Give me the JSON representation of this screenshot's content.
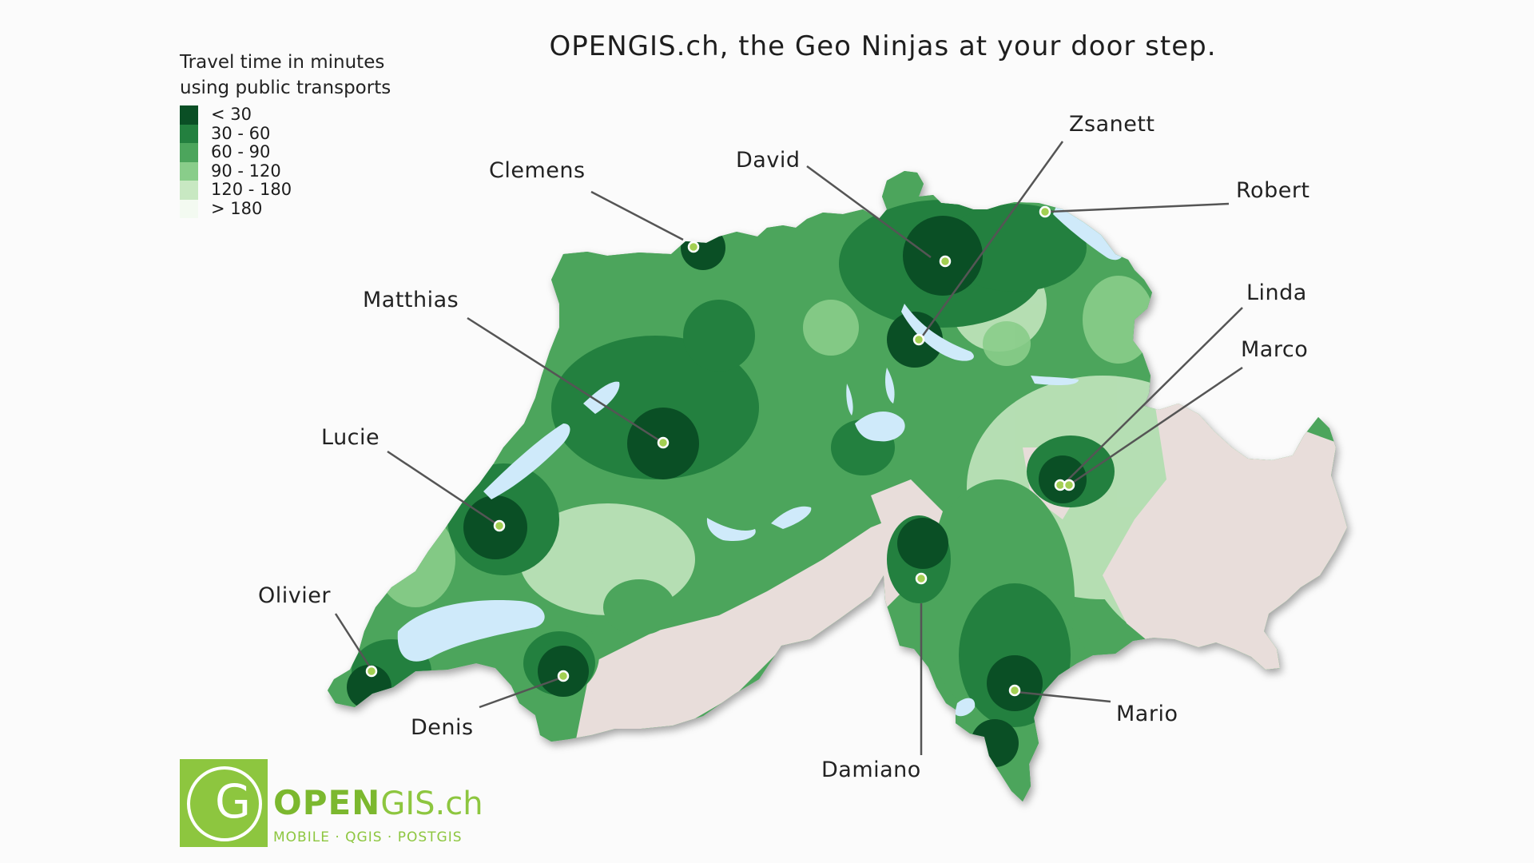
{
  "title": "OPENGIS.ch, the Geo Ninjas at your door step.",
  "legend": {
    "title_line1": "Travel time in minutes",
    "title_line2": "using public transports",
    "items": [
      {
        "label": "< 30",
        "color": "#0a4f25"
      },
      {
        "label": "30 - 60",
        "color": "#23803f"
      },
      {
        "label": "60 - 90",
        "color": "#4ca55c"
      },
      {
        "label": "90 - 120",
        "color": "#89cd8a"
      },
      {
        "label": "120 - 180",
        "color": "#c8e8c2"
      },
      {
        "label": "> 180",
        "color": "#f3faf1"
      }
    ]
  },
  "people": [
    "Clemens",
    "David",
    "Zsanett",
    "Robert",
    "Matthias",
    "Linda",
    "Marco",
    "Lucie",
    "Olivier",
    "Denis",
    "Damiano",
    "Mario"
  ],
  "colors": {
    "lake": "#cfeafa",
    "mountain": "#e8ddda",
    "marker_fill": "#a3cf52",
    "brand_green": "#8dc63f"
  },
  "logo": {
    "letter": "G",
    "brand_a": "OPEN",
    "brand_b": "GIS.ch",
    "tagline": "MOBILE · QGIS · POSTGIS"
  }
}
